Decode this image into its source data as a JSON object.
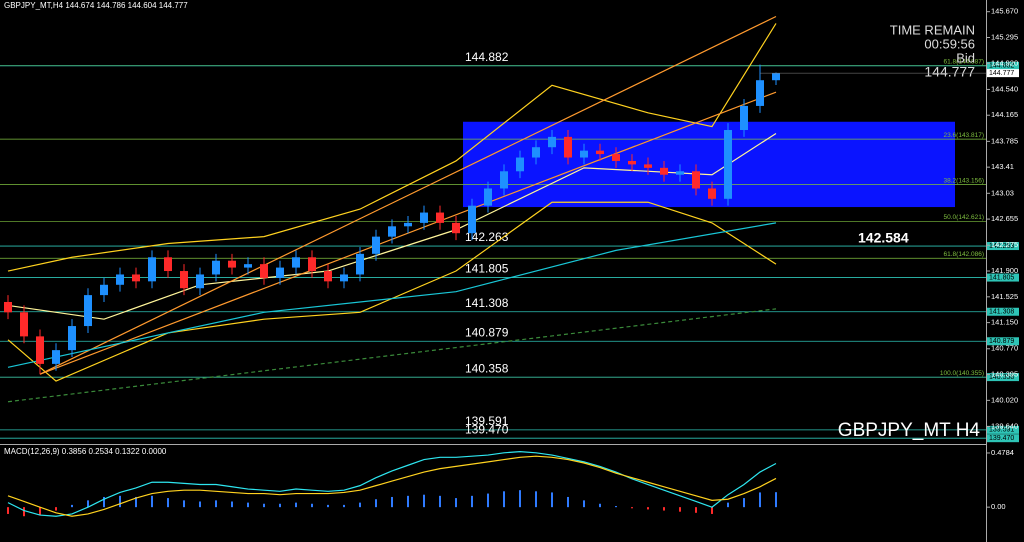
{
  "chart_data": {
    "type": "candlestick",
    "title": "GBPJPY_MT,H4  144.674 144.786 144.604 144.777",
    "ylim": [
      139.4,
      145.84
    ],
    "yticks": [
      {
        "value": 145.67,
        "label": "145.670"
      },
      145.295,
      {
        "value": 144.92,
        "label": "144.920"
      },
      {
        "value": 144.54,
        "label": "144.540"
      },
      144.165,
      143.785,
      143.41,
      143.03,
      142.655,
      142.275,
      {
        "value": 141.9,
        "label": "141.900"
      },
      141.525,
      {
        "value": 141.15,
        "label": "141.150"
      },
      {
        "value": 140.77,
        "label": "140.770"
      },
      140.395,
      {
        "value": 140.02,
        "label": "140.020"
      },
      {
        "value": 139.64,
        "label": "139.640"
      }
    ],
    "up_color": "#1e90ff",
    "down_color": "#ff2a2a",
    "candles": {
      "open": [
        141.45,
        141.3,
        140.95,
        140.55,
        140.75,
        141.1,
        141.55,
        141.7,
        141.85,
        141.75,
        142.1,
        141.9,
        141.65,
        141.85,
        142.05,
        141.95,
        142.0,
        141.8,
        141.95,
        142.1,
        141.9,
        141.75,
        141.85,
        142.15,
        142.4,
        142.55,
        142.6,
        142.75,
        142.6,
        142.45,
        142.85,
        143.1,
        143.35,
        143.55,
        143.7,
        143.85,
        143.55,
        143.65,
        143.6,
        143.5,
        143.45,
        143.4,
        143.3,
        143.35,
        143.1,
        142.95,
        143.95,
        144.3,
        144.674
      ],
      "high": [
        141.55,
        141.4,
        141.05,
        140.85,
        141.2,
        141.65,
        141.8,
        141.95,
        141.95,
        142.2,
        142.2,
        142.0,
        141.95,
        142.15,
        142.15,
        142.1,
        142.1,
        142.05,
        142.2,
        142.2,
        142.0,
        141.95,
        142.25,
        142.5,
        142.65,
        142.7,
        142.85,
        142.85,
        142.7,
        142.95,
        143.2,
        143.45,
        143.65,
        143.8,
        143.95,
        143.95,
        143.75,
        143.75,
        143.7,
        143.6,
        143.55,
        143.5,
        143.45,
        143.45,
        143.2,
        144.05,
        144.4,
        144.9,
        144.786
      ],
      "low": [
        141.2,
        140.85,
        140.4,
        140.45,
        140.65,
        141.0,
        141.45,
        141.6,
        141.65,
        141.65,
        141.8,
        141.55,
        141.55,
        141.75,
        141.85,
        141.85,
        141.7,
        141.7,
        141.85,
        141.8,
        141.65,
        141.65,
        141.75,
        142.05,
        142.3,
        142.45,
        142.5,
        142.5,
        142.35,
        142.35,
        142.75,
        143.0,
        143.25,
        143.45,
        143.6,
        143.45,
        143.45,
        143.5,
        143.4,
        143.35,
        143.3,
        143.2,
        143.2,
        143.0,
        142.85,
        142.85,
        143.85,
        144.2,
        144.604
      ],
      "close": [
        141.3,
        140.95,
        140.55,
        140.75,
        141.1,
        141.55,
        141.7,
        141.85,
        141.75,
        142.1,
        141.9,
        141.65,
        141.85,
        142.05,
        141.95,
        142.0,
        141.8,
        141.95,
        142.1,
        141.9,
        141.75,
        141.85,
        142.15,
        142.4,
        142.55,
        142.6,
        142.75,
        142.6,
        142.45,
        142.85,
        143.1,
        143.35,
        143.55,
        143.7,
        143.85,
        143.55,
        143.65,
        143.6,
        143.5,
        143.45,
        143.4,
        143.3,
        143.35,
        143.1,
        142.95,
        143.95,
        144.3,
        144.674,
        144.777
      ]
    },
    "rectangle": {
      "color": "#0a14ff",
      "from": 144.07,
      "to": 142.83
    },
    "overlays": [
      {
        "color": "#ffd21f",
        "points": [
          [
            0,
            141.9
          ],
          [
            4,
            142.1
          ],
          [
            10,
            142.3
          ],
          [
            16,
            142.4
          ],
          [
            22,
            142.8
          ],
          [
            28,
            143.5
          ],
          [
            34,
            144.6
          ],
          [
            40,
            144.2
          ],
          [
            44,
            144.0
          ],
          [
            48,
            145.5
          ]
        ]
      },
      {
        "color": "#ffd21f",
        "points": [
          [
            0,
            140.9
          ],
          [
            3,
            140.3
          ],
          [
            10,
            141.0
          ],
          [
            16,
            141.2
          ],
          [
            22,
            141.3
          ],
          [
            28,
            141.9
          ],
          [
            34,
            142.9
          ],
          [
            40,
            142.9
          ],
          [
            44,
            142.6
          ],
          [
            48,
            142.0
          ]
        ]
      },
      {
        "color": "#fff59a",
        "points": [
          [
            0,
            141.4
          ],
          [
            6,
            141.2
          ],
          [
            12,
            141.7
          ],
          [
            20,
            141.9
          ],
          [
            28,
            142.5
          ],
          [
            36,
            143.4
          ],
          [
            44,
            143.3
          ],
          [
            48,
            143.9
          ]
        ]
      },
      {
        "color": "#ff9a2e",
        "points": [
          [
            2,
            140.4
          ],
          [
            48,
            145.6
          ]
        ]
      },
      {
        "color": "#ff9a2e",
        "points": [
          [
            2,
            140.4
          ],
          [
            48,
            144.5
          ]
        ]
      },
      {
        "color": "#19c6d6",
        "points": [
          [
            0,
            140.5
          ],
          [
            16,
            141.3
          ],
          [
            28,
            141.6
          ],
          [
            38,
            142.2
          ],
          [
            48,
            142.6
          ]
        ]
      },
      {
        "color": "#3a8a3a",
        "points": [
          [
            0,
            140.0
          ],
          [
            48,
            141.35
          ]
        ]
      }
    ],
    "levels": [
      {
        "color": "#2ec4b6",
        "value": 144.882
      },
      {
        "color": "#2ec4b6",
        "value": 142.263
      },
      {
        "color": "#2ec4b6",
        "value": 141.805
      },
      {
        "color": "#2ec4b6",
        "value": 141.308
      },
      {
        "color": "#2ec4b6",
        "value": 140.879
      },
      {
        "color": "#2ec4b6",
        "value": 140.358
      },
      {
        "color": "#2ec4b6",
        "value": 139.591
      },
      {
        "color": "#2ec4b6",
        "value": {
          "value": 139.47,
          "label": "139.470"
        }
      }
    ],
    "fib_color": "#7fbf3f",
    "fibs": [
      {
        "value": 144.887,
        "label": "61.8(144.887)"
      },
      {
        "value": 143.817,
        "label": "23.6(143.817)"
      },
      {
        "value": 143.156,
        "label": "38.2(143.156)"
      },
      {
        "value": 142.621,
        "label": "50.0(142.621)"
      },
      {
        "value": 142.086,
        "label": "61.8(142.086)"
      },
      {
        "value": 140.355,
        "label": "100.0(140.355)"
      }
    ],
    "time_remain_label": "TIME REMAIN",
    "time_remain": "00:59:56",
    "bid_label": "Bid",
    "bid": 144.777,
    "marker_value": 142.584,
    "symbol_label": "GBPJPY_MT H4",
    "macd": {
      "label": "MACD(12,26,9) 0.3856 0.2534 0.1322 0.0000",
      "ylim": [
        -0.29,
        0.54
      ],
      "yticks": [
        0.4784,
        {
          "value": 0,
          "label": "0.00"
        }
      ],
      "histogram_color": "#2f7bff",
      "histogram_neg_color": "#ff2a2a",
      "histogram": [
        -0.06,
        -0.08,
        -0.07,
        -0.03,
        0.02,
        0.06,
        0.09,
        0.1,
        0.09,
        0.1,
        0.08,
        0.06,
        0.05,
        0.06,
        0.05,
        0.04,
        0.03,
        0.03,
        0.04,
        0.03,
        0.02,
        0.02,
        0.04,
        0.07,
        0.09,
        0.1,
        0.11,
        0.1,
        0.08,
        0.1,
        0.12,
        0.14,
        0.15,
        0.14,
        0.13,
        0.09,
        0.06,
        0.03,
        0.01,
        -0.01,
        -0.02,
        -0.03,
        -0.04,
        -0.05,
        -0.06,
        0.04,
        0.08,
        0.13,
        0.1322
      ],
      "macd_color": "#2ee6f0",
      "macd_line": [
        0.04,
        -0.03,
        -0.07,
        -0.08,
        -0.06,
        0.0,
        0.07,
        0.13,
        0.17,
        0.22,
        0.22,
        0.21,
        0.2,
        0.2,
        0.18,
        0.16,
        0.15,
        0.14,
        0.16,
        0.15,
        0.14,
        0.15,
        0.19,
        0.26,
        0.32,
        0.37,
        0.42,
        0.44,
        0.44,
        0.45,
        0.46,
        0.48,
        0.49,
        0.48,
        0.46,
        0.43,
        0.4,
        0.36,
        0.31,
        0.25,
        0.2,
        0.15,
        0.1,
        0.05,
        0.0,
        0.11,
        0.2,
        0.31,
        0.3856
      ],
      "signal_color": "#ffd21f",
      "signal_line": [
        0.1,
        0.05,
        0.0,
        -0.05,
        -0.08,
        -0.06,
        -0.02,
        0.03,
        0.08,
        0.12,
        0.14,
        0.15,
        0.15,
        0.14,
        0.13,
        0.12,
        0.12,
        0.11,
        0.12,
        0.12,
        0.12,
        0.13,
        0.15,
        0.19,
        0.23,
        0.27,
        0.31,
        0.34,
        0.36,
        0.38,
        0.4,
        0.42,
        0.44,
        0.45,
        0.44,
        0.42,
        0.39,
        0.35,
        0.3,
        0.26,
        0.22,
        0.18,
        0.14,
        0.1,
        0.06,
        0.07,
        0.12,
        0.18,
        0.2534
      ]
    }
  }
}
